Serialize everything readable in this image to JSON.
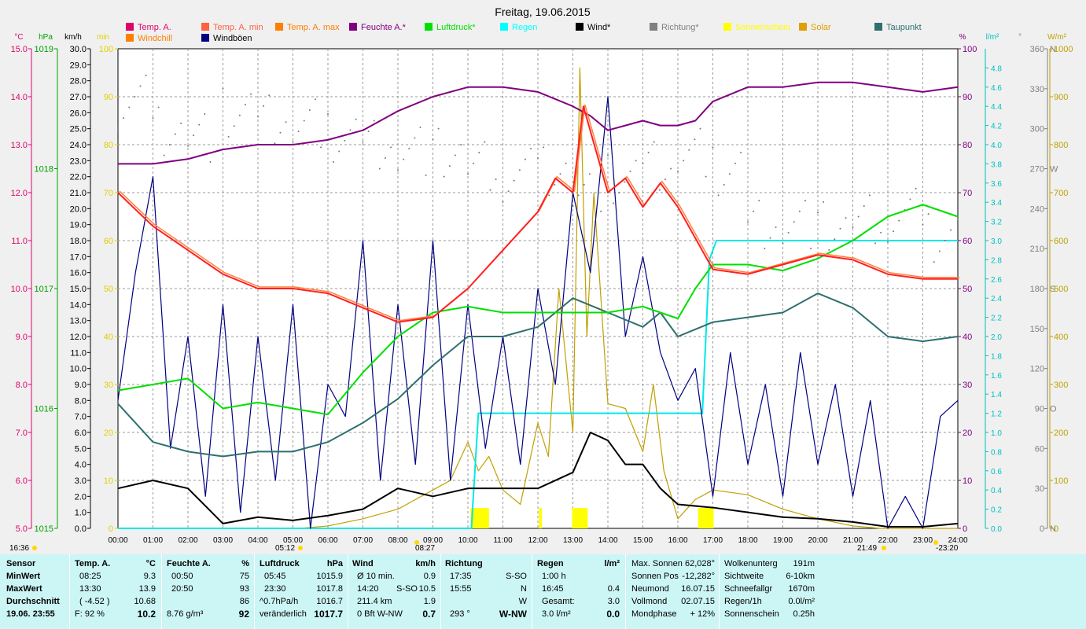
{
  "chart_data": {
    "type": "line",
    "title": "Freitag, 19.06.2015",
    "x_ticks": [
      "00:00",
      "01:00",
      "02:00",
      "03:00",
      "04:00",
      "05:00",
      "06:00",
      "07:00",
      "08:00",
      "09:00",
      "10:00",
      "11:00",
      "12:00",
      "13:00",
      "14:00",
      "15:00",
      "16:00",
      "17:00",
      "18:00",
      "19:00",
      "20:00",
      "21:00",
      "22:00",
      "23:00",
      "24:00"
    ],
    "x_range_hours": [
      0,
      24
    ],
    "sun_markers": [
      {
        "label": "16:36",
        "kind": "moon-set"
      },
      {
        "label": "05:12",
        "kind": "sunrise"
      },
      {
        "label": "08:27",
        "kind": "moon-rise"
      },
      {
        "label": "21:49",
        "kind": "sunset"
      },
      {
        "label": "-23:20",
        "kind": "moon"
      }
    ],
    "axes": {
      "temp": {
        "unit": "°C",
        "color": "#e0006a",
        "min": 5.0,
        "max": 15.0,
        "ticks": [
          "5.0",
          "6.0",
          "7.0",
          "8.0",
          "9.0",
          "10.0",
          "11.0",
          "12.0",
          "13.0",
          "14.0",
          "15.0"
        ]
      },
      "pressure": {
        "unit": "hPa",
        "color": "#00a000",
        "min": 1015,
        "max": 1019,
        "ticks": [
          "1015",
          "1016",
          "1017",
          "1018",
          "1019"
        ]
      },
      "wind": {
        "unit": "km/h",
        "color": "#000000",
        "min": 0.0,
        "max": 30.0,
        "ticks": [
          "0.0",
          "1.0",
          "2.0",
          "3.0",
          "4.0",
          "5.0",
          "6.0",
          "7.0",
          "8.0",
          "9.0",
          "10.0",
          "11.0",
          "12.0",
          "13.0",
          "14.0",
          "15.0",
          "16.0",
          "17.0",
          "18.0",
          "19.0",
          "20.0",
          "21.0",
          "22.0",
          "23.0",
          "24.0",
          "25.0",
          "26.0",
          "27.0",
          "28.0",
          "29.0",
          "30.0"
        ]
      },
      "minutes": {
        "unit": "min",
        "color": "#e0d000",
        "min": 0,
        "max": 100,
        "ticks": [
          "0",
          "10",
          "20",
          "30",
          "40",
          "50",
          "60",
          "70",
          "80",
          "90",
          "100"
        ]
      },
      "humidity": {
        "unit": "%",
        "color": "#800080",
        "min": 0,
        "max": 100,
        "ticks": [
          "0",
          "10",
          "20",
          "30",
          "40",
          "50",
          "60",
          "70",
          "80",
          "90",
          "100"
        ]
      },
      "rain": {
        "unit": "l/m²",
        "color": "#00c0c0",
        "min": 0.0,
        "max": 5.0,
        "ticks": [
          "0.0",
          "0.2",
          "0.4",
          "0.6",
          "0.8",
          "1.0",
          "1.2",
          "1.4",
          "1.6",
          "1.8",
          "2.0",
          "2.2",
          "2.4",
          "2.6",
          "2.8",
          "3.0",
          "3.2",
          "3.4",
          "3.6",
          "3.8",
          "4.0",
          "4.2",
          "4.4",
          "4.6",
          "4.8"
        ]
      },
      "direction": {
        "unit": "°",
        "color": "#808080",
        "min": 0,
        "max": 360,
        "ticks": [
          "0",
          "30",
          "60",
          "90",
          "120",
          "150",
          "180",
          "210",
          "240",
          "270",
          "300",
          "330",
          "360"
        ],
        "compass": {
          "0": "N",
          "90": "O",
          "180": "S",
          "270": "W",
          "360": "N"
        }
      },
      "solar": {
        "unit": "W/m²",
        "color": "#c0a000",
        "min": 0,
        "max": 1000,
        "ticks": [
          "0",
          "100",
          "200",
          "300",
          "400",
          "500",
          "600",
          "700",
          "800",
          "900",
          "1000"
        ]
      }
    },
    "legend": [
      {
        "name": "Temp. A.",
        "color": "#e0006a"
      },
      {
        "name": "Temp. A. min",
        "color": "#ff6040"
      },
      {
        "name": "Temp. A. max",
        "color": "#ff8000"
      },
      {
        "name": "Feuchte A.*",
        "color": "#800080"
      },
      {
        "name": "Luftdruck*",
        "color": "#00e000"
      },
      {
        "name": "Regen",
        "color": "#00ffff"
      },
      {
        "name": "Wind*",
        "color": "#000000"
      },
      {
        "name": "Richtung*",
        "color": "#808080"
      },
      {
        "name": "Sonnenschein",
        "color": "#ffff00"
      },
      {
        "name": "Solar",
        "color": "#e0a000"
      },
      {
        "name": "Taupunkt",
        "color": "#2f6f6f"
      },
      {
        "name": "Windchill",
        "color": "#ff8000"
      },
      {
        "name": "Windböen",
        "color": "#000080"
      }
    ],
    "series": [
      {
        "name": "Temp. A.",
        "axis": "temp",
        "color": "#ff2020",
        "x": [
          0,
          1,
          2,
          3,
          4,
          5,
          6,
          7,
          8,
          9,
          10,
          11,
          12,
          12.5,
          13,
          13.3,
          14,
          14.5,
          15,
          15.5,
          16,
          17,
          18,
          19,
          20,
          21,
          22,
          23,
          24
        ],
        "y": [
          12.0,
          11.3,
          10.8,
          10.3,
          10.0,
          10.0,
          9.9,
          9.6,
          9.3,
          9.4,
          10.0,
          10.8,
          11.6,
          12.3,
          12.0,
          13.8,
          12.0,
          12.3,
          11.7,
          12.2,
          11.7,
          10.4,
          10.3,
          10.5,
          10.7,
          10.6,
          10.3,
          10.2,
          10.2
        ]
      },
      {
        "name": "Feuchte A.*",
        "axis": "humidity",
        "color": "#800080",
        "x": [
          0,
          1,
          2,
          3,
          4,
          5,
          6,
          7,
          8,
          9,
          10,
          11,
          12,
          13,
          13.5,
          14,
          14.5,
          15,
          15.5,
          16,
          16.5,
          17,
          18,
          19,
          20,
          21,
          22,
          23,
          24
        ],
        "y": [
          76,
          76,
          77,
          79,
          80,
          80,
          81,
          83,
          87,
          90,
          92,
          92,
          91,
          88,
          86,
          83,
          84,
          85,
          84,
          84,
          85,
          89,
          92,
          92,
          93,
          93,
          92,
          91,
          92
        ]
      },
      {
        "name": "Luftdruck*",
        "axis": "pressure",
        "color": "#00e000",
        "x": [
          0,
          1,
          2,
          3,
          4,
          5,
          6,
          7,
          8,
          9,
          10,
          11,
          12,
          13,
          14,
          15,
          16,
          16.5,
          17,
          18,
          19,
          20,
          21,
          22,
          23,
          24
        ],
        "y": [
          1016.15,
          1016.2,
          1016.25,
          1016.0,
          1016.05,
          1016.0,
          1015.95,
          1016.3,
          1016.6,
          1016.8,
          1016.85,
          1016.8,
          1016.8,
          1016.8,
          1016.8,
          1016.85,
          1016.75,
          1017.0,
          1017.2,
          1017.2,
          1017.15,
          1017.25,
          1017.4,
          1017.6,
          1017.7,
          1017.6
        ]
      },
      {
        "name": "Taupunkt",
        "axis": "temp",
        "color": "#2f6f6f",
        "x": [
          0,
          1,
          2,
          3,
          4,
          5,
          6,
          7,
          8,
          9,
          10,
          11,
          12,
          13,
          14,
          15,
          15.5,
          16,
          17,
          18,
          19,
          20,
          21,
          22,
          23,
          24
        ],
        "y": [
          7.6,
          6.8,
          6.6,
          6.5,
          6.6,
          6.6,
          6.8,
          7.2,
          7.7,
          8.4,
          9.0,
          9.0,
          9.2,
          9.8,
          9.5,
          9.2,
          9.5,
          9.0,
          9.3,
          9.4,
          9.5,
          9.9,
          9.6,
          9.0,
          8.9,
          9.0
        ]
      },
      {
        "name": "Wind*",
        "axis": "wind",
        "color": "#000000",
        "x": [
          0,
          1,
          2,
          3,
          4,
          5,
          6,
          7,
          8,
          9,
          10,
          11,
          12,
          13,
          13.5,
          14,
          14.5,
          15,
          15.5,
          16,
          17,
          18,
          19,
          20,
          21,
          22,
          23,
          24
        ],
        "y": [
          2.5,
          3.0,
          2.5,
          0.3,
          0.7,
          0.5,
          0.8,
          1.2,
          2.5,
          2.0,
          2.5,
          2.5,
          2.5,
          3.5,
          6.0,
          5.5,
          4.0,
          4.0,
          2.5,
          1.5,
          1.3,
          1.0,
          0.7,
          0.6,
          0.4,
          0.1,
          0.1,
          0.3
        ]
      },
      {
        "name": "Windböen",
        "axis": "wind",
        "color": "#000080",
        "x": [
          0,
          0.5,
          1,
          1.5,
          2,
          2.5,
          3,
          3.5,
          4,
          4.5,
          5,
          5.5,
          6,
          6.5,
          7,
          7.5,
          8,
          8.5,
          9,
          9.5,
          10,
          10.5,
          11,
          11.5,
          12,
          12.5,
          13,
          13.5,
          14,
          14.5,
          15,
          15.5,
          16,
          16.5,
          17,
          17.5,
          18,
          18.5,
          19,
          19.5,
          20,
          20.5,
          21,
          21.5,
          22,
          22.5,
          23,
          23.5,
          24
        ],
        "y": [
          8,
          16,
          22,
          5,
          12,
          2,
          14,
          1,
          12,
          3,
          14,
          0,
          9,
          7,
          18,
          3,
          14,
          4,
          18,
          3,
          14,
          5,
          12,
          4,
          15,
          9,
          21,
          16,
          27,
          12,
          17,
          11,
          8,
          10,
          2,
          11,
          4,
          9,
          2,
          11,
          4,
          9,
          2,
          8,
          0,
          2,
          0,
          7,
          8
        ]
      },
      {
        "name": "Richtung*",
        "axis": "direction",
        "color": "#808080",
        "x": [
          0,
          1,
          2,
          3,
          4,
          5,
          6,
          7,
          8,
          9,
          10,
          11,
          12,
          13,
          14,
          15,
          16,
          17,
          18,
          19,
          20,
          21,
          22,
          23,
          24
        ],
        "y": [
          320,
          300,
          295,
          310,
          305,
          302,
          295,
          290,
          285,
          280,
          270,
          265,
          270,
          250,
          260,
          270,
          280,
          270,
          230,
          230,
          225,
          230,
          235,
          220,
          240
        ]
      },
      {
        "name": "Solar",
        "axis": "solar",
        "color": "#c0a000",
        "x": [
          0,
          5.2,
          6,
          7,
          8,
          8.5,
          9,
          9.5,
          10,
          10.3,
          10.6,
          11,
          11.5,
          12,
          12.3,
          12.6,
          13,
          13.2,
          13.4,
          13.6,
          14,
          14.5,
          15,
          15.3,
          15.6,
          16,
          16.5,
          17,
          18,
          19,
          20,
          21,
          21.8,
          24
        ],
        "y": [
          0,
          0,
          5,
          20,
          40,
          60,
          80,
          100,
          180,
          120,
          150,
          80,
          50,
          220,
          150,
          500,
          200,
          960,
          400,
          700,
          260,
          250,
          160,
          300,
          120,
          20,
          60,
          80,
          70,
          40,
          20,
          5,
          0,
          0
        ]
      },
      {
        "name": "Regen",
        "axis": "rain",
        "color": "#00e0e0",
        "x": [
          0,
          10.1,
          10.3,
          16.7,
          16.9,
          17.1,
          24
        ],
        "y": [
          0,
          0,
          1.2,
          1.2,
          2.8,
          3.0,
          3.0
        ]
      }
    ],
    "sunshine_bars_hours": [
      [
        10.1,
        10.6
      ],
      [
        12.05,
        12.1
      ],
      [
        13.0,
        13.4
      ],
      [
        16.6,
        17.0
      ]
    ]
  },
  "stats": {
    "sensor": {
      "header": "Sensor",
      "rows": [
        "MinWert",
        "MaxWert",
        "Durchschnitt",
        "19.06. 23:55"
      ]
    },
    "temp": {
      "header": "Temp. A.",
      "unit": "°C",
      "rows": [
        [
          "08:25",
          "9.3"
        ],
        [
          "13:30",
          "13.9"
        ],
        [
          "( -4.52 )",
          "10.68"
        ],
        [
          "F: 92 %",
          "10.2"
        ]
      ]
    },
    "feuchte": {
      "header": "Feuchte A.",
      "unit": "%",
      "rows": [
        [
          "00:50",
          "75"
        ],
        [
          "20:50",
          "93"
        ],
        [
          "",
          "86"
        ],
        [
          "8.76 g/m³",
          "92"
        ]
      ]
    },
    "luftdruck": {
      "header": "Luftdruck",
      "unit": "hPa",
      "rows": [
        [
          "05:45",
          "1015.9"
        ],
        [
          "23:30",
          "1017.8"
        ],
        [
          "^0.7hPa/h",
          "1016.7"
        ],
        [
          "veränderlich",
          "1017.7"
        ]
      ]
    },
    "wind": {
      "header": "Wind",
      "unit": "km/h",
      "rows": [
        [
          "Ø 10 min.",
          "",
          "0.9"
        ],
        [
          "14:20",
          "S-SO",
          "10.5"
        ],
        [
          "211.4 km",
          "",
          "1.9"
        ],
        [
          "0 Bft W-NW",
          "",
          "0.7"
        ]
      ]
    },
    "richtung": {
      "header": "Richtung",
      "rows": [
        [
          "17:35",
          "S-SO"
        ],
        [
          "15:55",
          "N"
        ],
        [
          "",
          "W"
        ],
        [
          "293 °",
          "W-NW"
        ]
      ]
    },
    "regen": {
      "header": "Regen",
      "unit": "l/m²",
      "rows": [
        [
          "1:00 h",
          ""
        ],
        [
          "16:45",
          "0.4"
        ],
        [
          "Gesamt:",
          "3.0"
        ],
        [
          "3.0 l/m²",
          "0.0"
        ]
      ]
    },
    "astro": {
      "rows": [
        [
          "Max. Sonnen",
          "62,028°"
        ],
        [
          "Sonnen Pos",
          "-12,282°"
        ],
        [
          "Neumond",
          "16.07.15"
        ],
        [
          "Vollmond",
          "02.07.15"
        ],
        [
          "Mondphase",
          "+ 12%"
        ]
      ]
    },
    "misc": {
      "rows": [
        [
          "Wolkenunterg",
          "191m"
        ],
        [
          "Sichtweite",
          "6-10km"
        ],
        [
          "Schneefallgr",
          "1670m"
        ],
        [
          "Regen/1h",
          "0.0l/m²"
        ],
        [
          "Sonnenschein",
          "0.25h"
        ]
      ]
    }
  }
}
